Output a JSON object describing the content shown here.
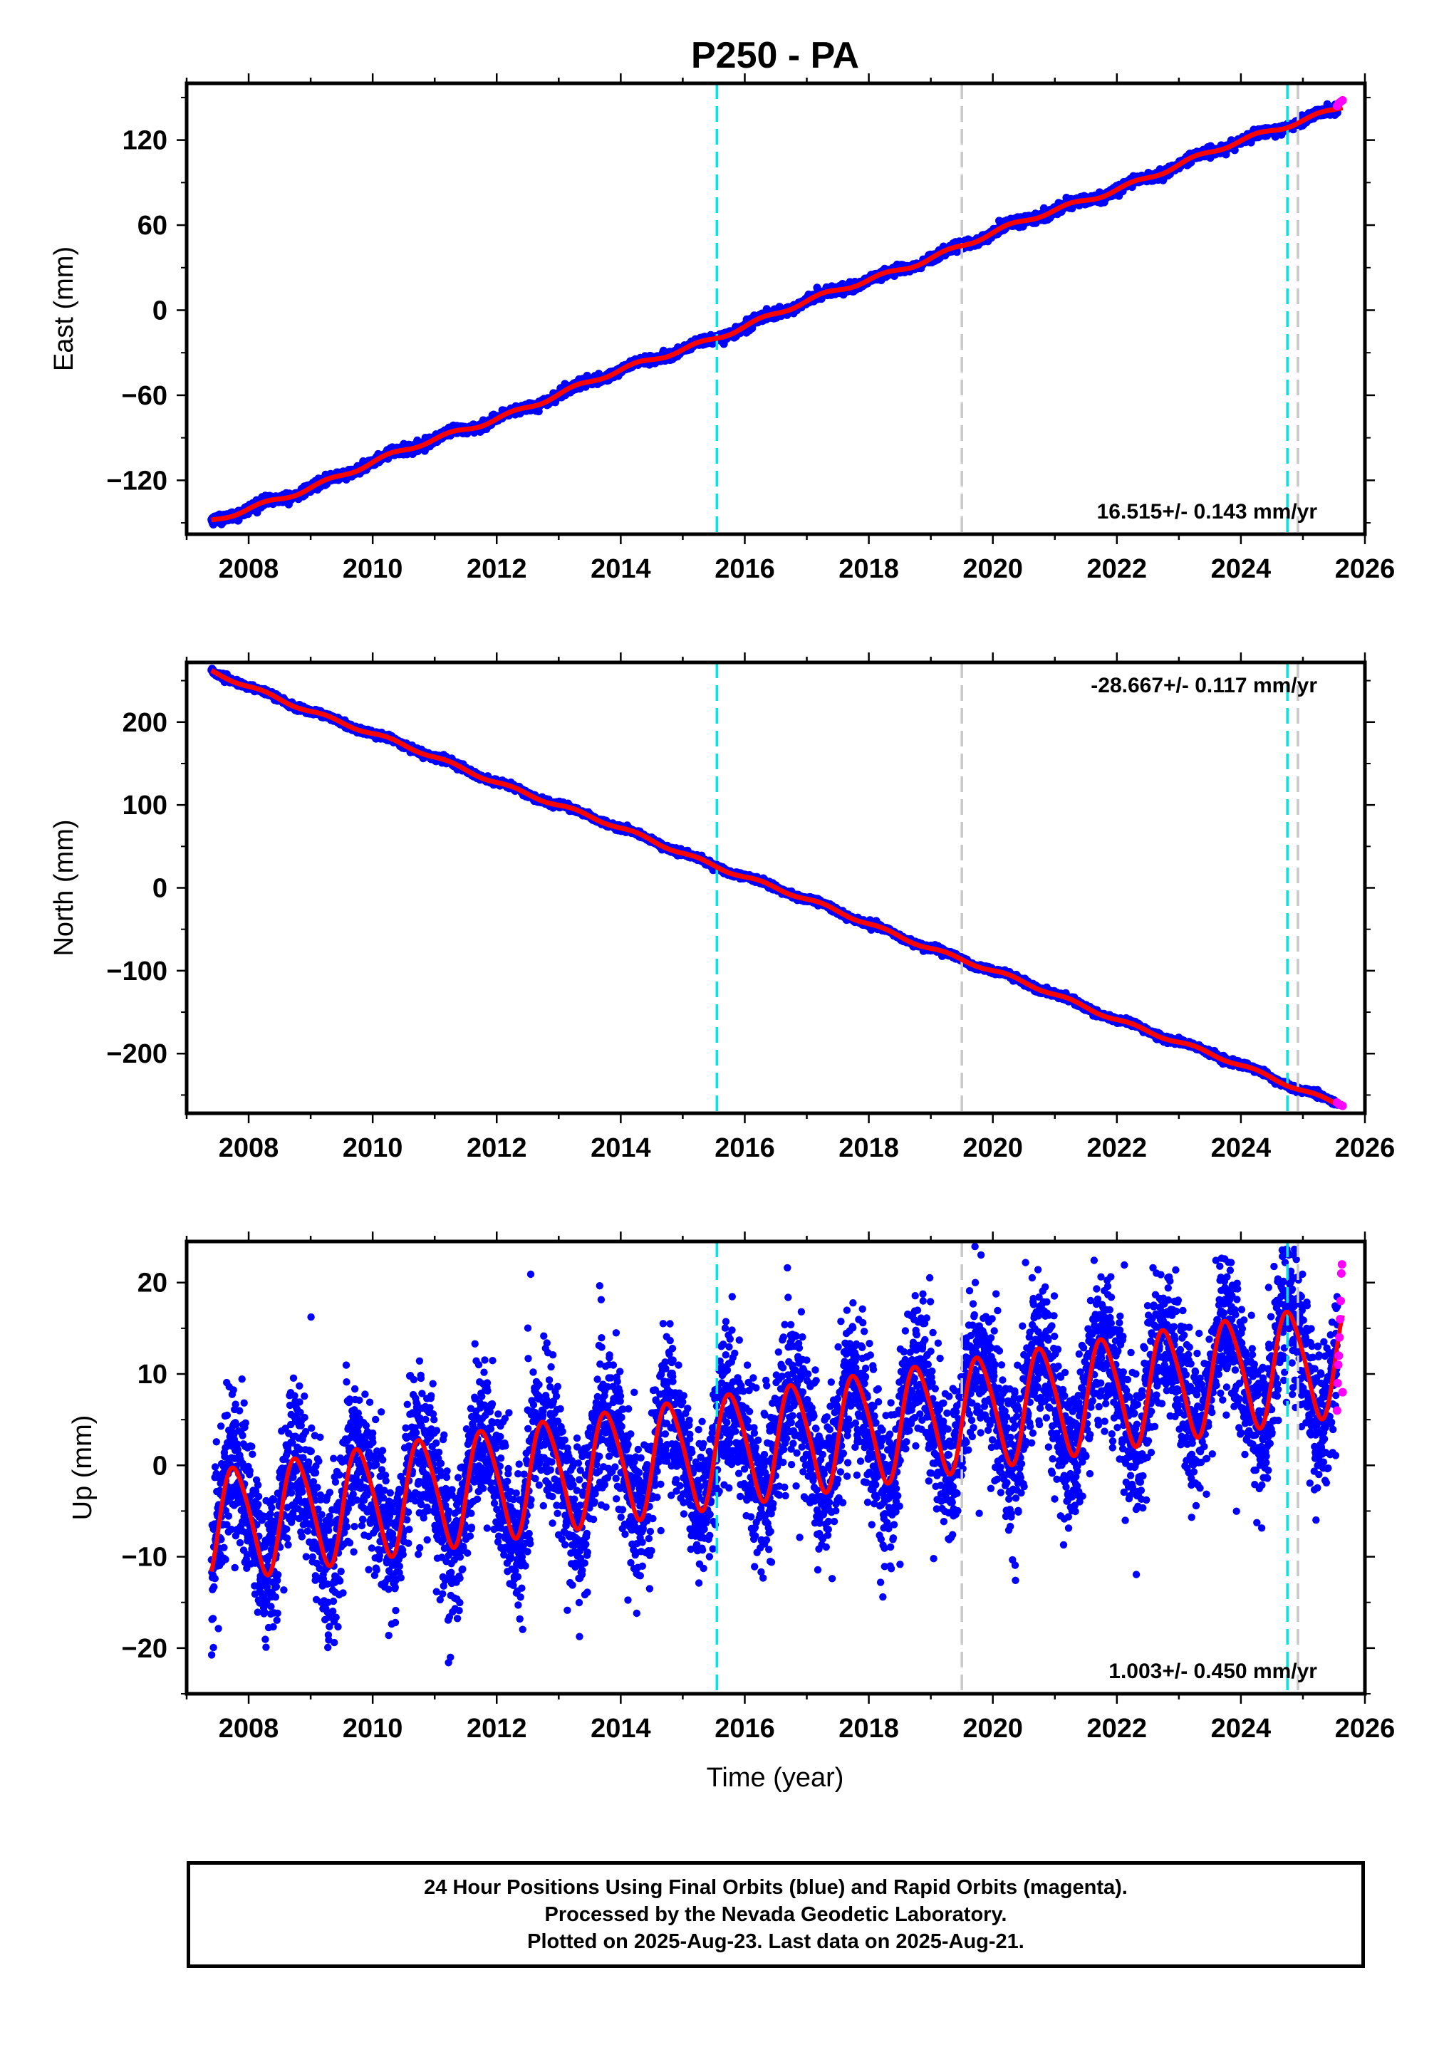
{
  "title": "P250 - PA",
  "xlabel": "Time (year)",
  "footer": {
    "line1": "24 Hour Positions Using Final Orbits (blue) and Rapid Orbits (magenta).",
    "line2": "Processed by the Nevada Geodetic Laboratory.",
    "line3": "Plotted on 2025-Aug-23. Last data on 2025-Aug-21."
  },
  "colors": {
    "final_orbit_points": "#0000ff",
    "rapid_orbit_points": "#ff00ff",
    "model_fit": "#ff0000",
    "antenna_change_lines": "#00e5e5",
    "other_event_lines": "#c8c8c8"
  },
  "chart_data": [
    {
      "type": "scatter",
      "panel": "east",
      "ylabel": "East (mm)",
      "velocity_label": "16.515+/- 0.143 mm/yr",
      "xlim": [
        2007.0,
        2026.0
      ],
      "ylim": [
        -158,
        160
      ],
      "x_ticks": [
        2008,
        2010,
        2012,
        2014,
        2016,
        2018,
        2020,
        2022,
        2024,
        2026
      ],
      "x_tick_labels": [
        "2008",
        "2010",
        "2012",
        "2014",
        "2016",
        "2018",
        "2020",
        "2022",
        "2024",
        "2026"
      ],
      "y_ticks": [
        -120,
        -60,
        0,
        60,
        120
      ],
      "y_tick_labels": [
        "−120",
        "−60",
        "0",
        "60",
        "120"
      ],
      "velocity_mm_per_yr": 16.515,
      "start": {
        "x": 2007.4,
        "y": -150
      },
      "end": {
        "x": 2025.64,
        "y": 145
      },
      "seasonal_amplitude_mm": 1.5,
      "scatter_mm": 1.6,
      "vertical_events": [
        {
          "x": 2015.55,
          "kind": "cyan"
        },
        {
          "x": 2019.5,
          "kind": "gray"
        },
        {
          "x": 2024.75,
          "kind": "cyan"
        },
        {
          "x": 2024.92,
          "kind": "gray"
        }
      ],
      "rapid_points": [
        {
          "x": 2025.55,
          "y": 144
        },
        {
          "x": 2025.58,
          "y": 146
        },
        {
          "x": 2025.61,
          "y": 147
        },
        {
          "x": 2025.64,
          "y": 148
        }
      ]
    },
    {
      "type": "scatter",
      "panel": "north",
      "ylabel": "North (mm)",
      "velocity_label": "-28.667+/- 0.117 mm/yr",
      "xlim": [
        2007.0,
        2026.0
      ],
      "ylim": [
        -272,
        272
      ],
      "x_ticks": [
        2008,
        2010,
        2012,
        2014,
        2016,
        2018,
        2020,
        2022,
        2024,
        2026
      ],
      "x_tick_labels": [
        "2008",
        "2010",
        "2012",
        "2014",
        "2016",
        "2018",
        "2020",
        "2022",
        "2024",
        "2026"
      ],
      "y_ticks": [
        -200,
        -100,
        0,
        100,
        200
      ],
      "y_tick_labels": [
        "−200",
        "−100",
        "0",
        "100",
        "200"
      ],
      "velocity_mm_per_yr": -28.667,
      "start": {
        "x": 2007.4,
        "y": 260
      },
      "end": {
        "x": 2025.64,
        "y": -262
      },
      "seasonal_amplitude_mm": 2.0,
      "scatter_mm": 1.8,
      "vertical_events": [
        {
          "x": 2015.55,
          "kind": "cyan"
        },
        {
          "x": 2019.5,
          "kind": "gray"
        },
        {
          "x": 2024.75,
          "kind": "cyan"
        },
        {
          "x": 2024.92,
          "kind": "gray"
        }
      ],
      "rapid_points": [
        {
          "x": 2025.55,
          "y": -259
        },
        {
          "x": 2025.58,
          "y": -261
        },
        {
          "x": 2025.61,
          "y": -262
        },
        {
          "x": 2025.64,
          "y": -263
        }
      ]
    },
    {
      "type": "scatter",
      "panel": "up",
      "ylabel": "Up (mm)",
      "velocity_label": "1.003+/- 0.450 mm/yr",
      "xlim": [
        2007.0,
        2026.0
      ],
      "ylim": [
        -25,
        24.5
      ],
      "x_ticks": [
        2008,
        2010,
        2012,
        2014,
        2016,
        2018,
        2020,
        2022,
        2024,
        2026
      ],
      "x_tick_labels": [
        "2008",
        "2010",
        "2012",
        "2014",
        "2016",
        "2018",
        "2020",
        "2022",
        "2024",
        "2026"
      ],
      "y_ticks": [
        -20,
        -10,
        0,
        10,
        20
      ],
      "y_tick_labels": [
        "−20",
        "−10",
        "0",
        "10",
        "20"
      ],
      "velocity_mm_per_yr": 1.003,
      "trend_at_2007_4": -6.5,
      "seasonal_amplitude_mm": 6.0,
      "seasonal_peak_year_fraction": 0.78,
      "scatter_mm": 4.0,
      "vertical_events": [
        {
          "x": 2015.55,
          "kind": "cyan"
        },
        {
          "x": 2019.5,
          "kind": "gray"
        },
        {
          "x": 2024.75,
          "kind": "cyan"
        },
        {
          "x": 2024.92,
          "kind": "gray"
        }
      ],
      "rapid_points": [
        {
          "x": 2025.55,
          "y": 6
        },
        {
          "x": 2025.56,
          "y": 9
        },
        {
          "x": 2025.57,
          "y": 11
        },
        {
          "x": 2025.58,
          "y": 12
        },
        {
          "x": 2025.59,
          "y": 14
        },
        {
          "x": 2025.6,
          "y": 16
        },
        {
          "x": 2025.61,
          "y": 18
        },
        {
          "x": 2025.62,
          "y": 21
        },
        {
          "x": 2025.63,
          "y": 22
        },
        {
          "x": 2025.64,
          "y": 8
        }
      ]
    }
  ]
}
